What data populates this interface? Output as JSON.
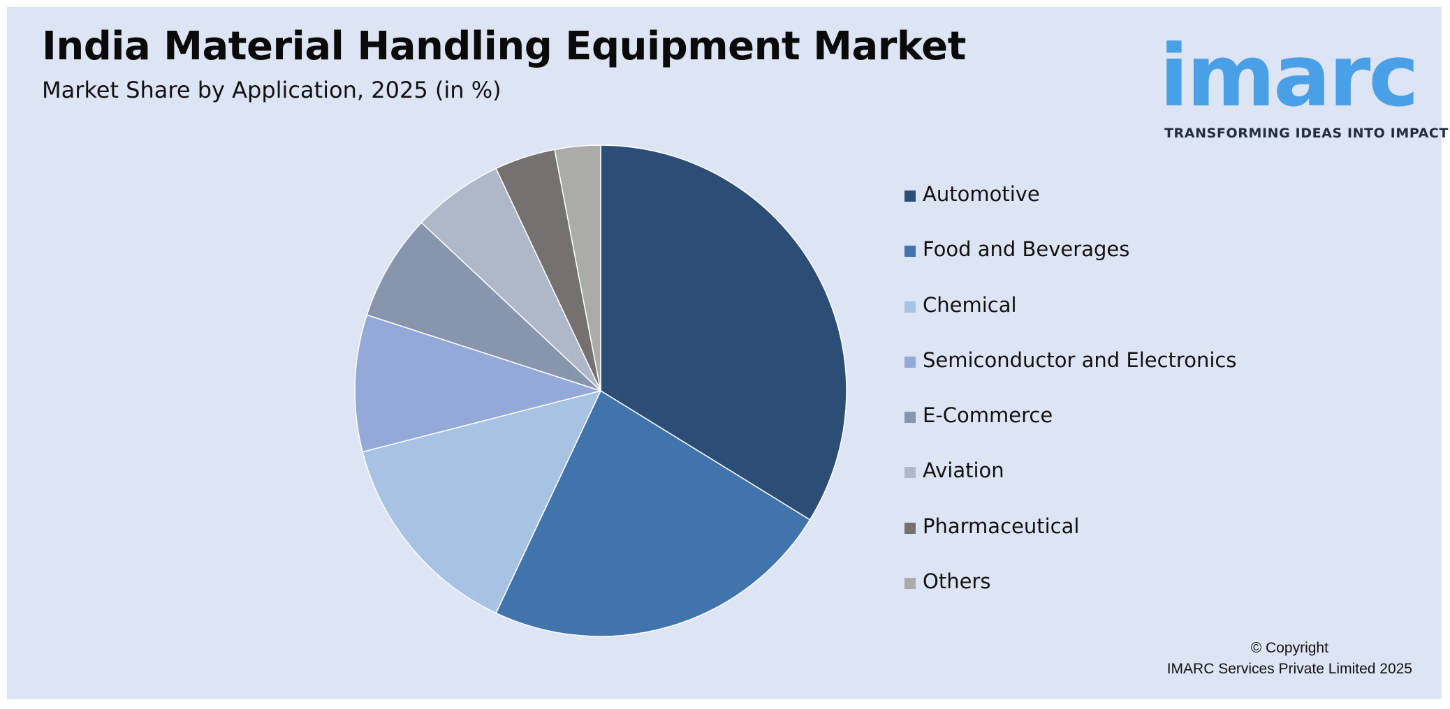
{
  "header": {
    "title": "India Material Handling Equipment Market",
    "subtitle": "Market Share by Application, 2025 (in %)"
  },
  "logo": {
    "wordmark": "imarc",
    "tagline": "TRANSFORMING IDEAS INTO IMPACT",
    "color": "#4aa0e6"
  },
  "footer": {
    "copyright_line1": "© Copyright",
    "copyright_line2": "IMARC Services Private Limited 2025"
  },
  "chart_data": {
    "type": "pie",
    "title": "India Material Handling Equipment Market",
    "subtitle": "Market Share by Application, 2025 (in %)",
    "start_angle_deg": 0,
    "direction": "clockwise",
    "legend_position": "right",
    "categories": [
      "Automotive",
      "Food and Beverages",
      "Chemical",
      "Semiconductor and Electronics",
      "E-Commerce",
      "Aviation",
      "Pharmaceutical",
      "Others"
    ],
    "values": [
      33.8,
      23.2,
      14.0,
      9.0,
      7.0,
      6.0,
      4.0,
      3.0
    ],
    "colors": [
      "#2c4d75",
      "#4174ad",
      "#a7c2e3",
      "#95a9d8",
      "#8795ad",
      "#aeb8c9",
      "#757170",
      "#ababaa"
    ]
  }
}
